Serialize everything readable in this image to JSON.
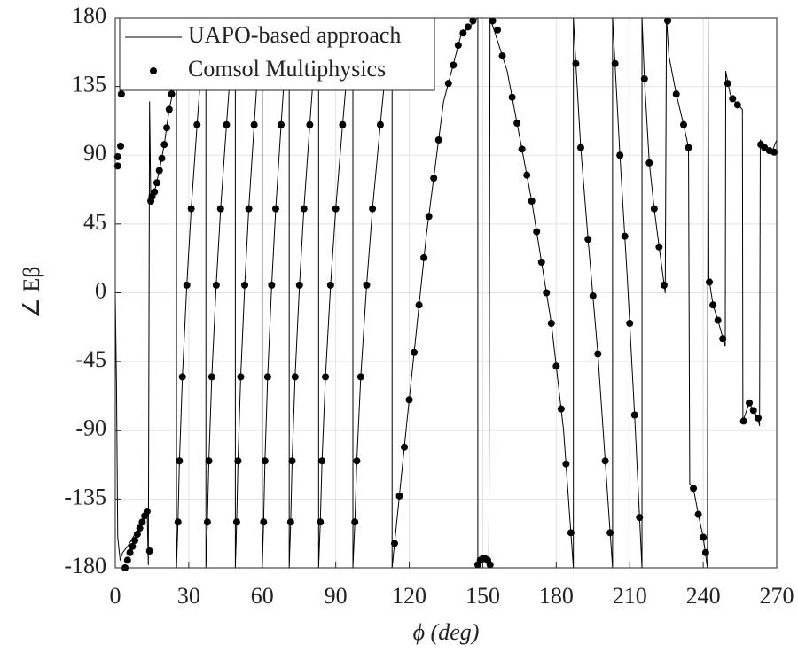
{
  "chart_data": {
    "type": "line",
    "xlabel": "ϕ (deg)",
    "ylabel": "∠ Eβ",
    "xlim": [
      0,
      270
    ],
    "ylim": [
      -180,
      180
    ],
    "xticks": [
      0,
      30,
      60,
      90,
      120,
      150,
      180,
      210,
      240,
      270
    ],
    "yticks": [
      -180,
      -135,
      -90,
      -45,
      0,
      45,
      90,
      135,
      180
    ],
    "grid": true,
    "legend_loc": "upper left",
    "series": [
      {
        "name": "UAPO-based approach",
        "mode": "line",
        "color": "#000000",
        "x": [
          0,
          0.5,
          1,
          2,
          3,
          5,
          8,
          11,
          13,
          13.5,
          14,
          14.5,
          16,
          18,
          20,
          22,
          24,
          25,
          25,
          25.6,
          26.2,
          27.4,
          29.2,
          31,
          33.4,
          35.2,
          37,
          37,
          37.6,
          38.2,
          39.4,
          41.2,
          43,
          45.4,
          47.2,
          49,
          49,
          49.55,
          50.1,
          51.2,
          52.85,
          54.5,
          56.7,
          58.35,
          60,
          60,
          60.55,
          61.1,
          62.2,
          63.85,
          65.5,
          67.7,
          69.35,
          71,
          71,
          71.6,
          72.2,
          73.4,
          75.2,
          77,
          79.4,
          81.2,
          83,
          83,
          83.7,
          84.4,
          85.8,
          87.9,
          90,
          92.8,
          94.9,
          97,
          97,
          97.8,
          98.6,
          100.2,
          102.6,
          105,
          108.2,
          110.6,
          113,
          113,
          119,
          127,
          134,
          141,
          148,
          148,
          149,
          151,
          152.5,
          153,
          160,
          170,
          178,
          183,
          187,
          187,
          188,
          190,
          193,
          197,
          200,
          203,
          203,
          204,
          206,
          209,
          212,
          215,
          215,
          216,
          218,
          220,
          222,
          224.5,
          225,
          226,
          229,
          232,
          234,
          234.5,
          236,
          238,
          240,
          241.7,
          242,
          242.3,
          244,
          246,
          249,
          249.2,
          251,
          253,
          256,
          256.2,
          258.8,
          260.5,
          262.4,
          263,
          263.3,
          265,
          268,
          270
        ],
        "values": [
          0,
          -60,
          -160,
          -175,
          -170,
          -166,
          -158,
          -150,
          -142,
          -178,
          125,
          60,
          66,
          80,
          97,
          120,
          135,
          180,
          -180,
          -150,
          -110,
          -55,
          5,
          55,
          110,
          150,
          180,
          -180,
          -150,
          -110,
          -55,
          5,
          55,
          110,
          150,
          180,
          -180,
          -150,
          -110,
          -55,
          5,
          55,
          110,
          150,
          180,
          -180,
          -150,
          -110,
          -55,
          5,
          55,
          110,
          150,
          180,
          -180,
          -150,
          -110,
          -55,
          5,
          55,
          110,
          150,
          180,
          -180,
          -150,
          -110,
          -55,
          5,
          55,
          110,
          150,
          180,
          -180,
          -150,
          -110,
          -55,
          5,
          55,
          110,
          150,
          180,
          -180,
          -85,
          38,
          125,
          168,
          180,
          -180,
          -175,
          -175,
          -180,
          180,
          145,
          60,
          -20,
          -90,
          -180,
          180,
          150,
          95,
          35,
          -40,
          -110,
          -180,
          180,
          150,
          90,
          10,
          -80,
          -180,
          180,
          140,
          85,
          55,
          30,
          0,
          180,
          155,
          130,
          110,
          95,
          -125,
          -128,
          -145,
          -160,
          -180,
          180,
          10,
          -8,
          -18,
          -35,
          145,
          130,
          125,
          120,
          -84,
          -72,
          -77,
          -82,
          -87,
          100,
          95,
          92,
          100
        ]
      },
      {
        "name": "Comsol Multiphysics",
        "mode": "scatter",
        "color": "#000000",
        "x": [
          1,
          1,
          2.2,
          2.5,
          4,
          5,
          6,
          7,
          8,
          9,
          10,
          11,
          12,
          13,
          14,
          14.5,
          15,
          16,
          17,
          18,
          19,
          20,
          21,
          22,
          23,
          25.6,
          26.2,
          27.4,
          29.2,
          31,
          33.4,
          37.6,
          38.2,
          39.4,
          41.2,
          43,
          45.4,
          49.55,
          50.1,
          51.2,
          52.85,
          54.5,
          56.7,
          60.55,
          61.1,
          62.2,
          63.85,
          65.5,
          67.7,
          71.6,
          72.2,
          73.4,
          75.2,
          77,
          79.4,
          83.7,
          84.4,
          85.8,
          87.9,
          90,
          92.8,
          97.8,
          98.6,
          100.2,
          102.6,
          105,
          108.2,
          114,
          116,
          118,
          120,
          122,
          124,
          126,
          128,
          130,
          132,
          136,
          138,
          140,
          142,
          144,
          146,
          148,
          149,
          150,
          151,
          152,
          153,
          154,
          156,
          158,
          162,
          164,
          166,
          168,
          170,
          172,
          174,
          176,
          178,
          180,
          182,
          184,
          186,
          188,
          190,
          193,
          195,
          197,
          200,
          202,
          204,
          206,
          208,
          210,
          212,
          214,
          216,
          218,
          220,
          222,
          224,
          225.5,
          229,
          232,
          234,
          236,
          238,
          240,
          241,
          242.5,
          244,
          246,
          248,
          250,
          252,
          254,
          256.5,
          258.8,
          260.5,
          262.4,
          263.5,
          265,
          267,
          269
        ],
        "values": [
          89,
          83,
          96,
          130,
          -180,
          -175,
          -170,
          -166,
          -162,
          -158,
          -154,
          -150,
          -146,
          -143,
          -169,
          60,
          63,
          66,
          72,
          80,
          88,
          97,
          108,
          120,
          130,
          -150,
          -110,
          -55,
          5,
          55,
          110,
          -150,
          -110,
          -55,
          5,
          55,
          110,
          -150,
          -110,
          -55,
          5,
          55,
          110,
          -150,
          -110,
          -55,
          5,
          55,
          110,
          -150,
          -110,
          -55,
          5,
          55,
          110,
          -150,
          -110,
          -55,
          5,
          55,
          110,
          -150,
          -110,
          -55,
          5,
          55,
          110,
          -164,
          -133,
          -101,
          -70,
          -39,
          -8,
          23,
          50,
          75,
          100,
          137,
          149,
          162,
          170,
          174,
          178,
          -178,
          -175,
          -174,
          -174,
          -175,
          -178,
          178,
          172,
          155,
          128,
          111,
          94,
          77,
          60,
          40,
          20,
          0,
          -20,
          -48,
          -76,
          -112,
          -157,
          150,
          95,
          35,
          -2,
          -40,
          -110,
          -157,
          150,
          90,
          37,
          -20,
          -80,
          -147,
          140,
          85,
          55,
          30,
          5,
          178,
          130,
          110,
          95,
          -128,
          -145,
          -160,
          -170,
          7,
          -8,
          -18,
          -30,
          137,
          127,
          123,
          -84,
          -72,
          -77,
          -82,
          97,
          95,
          93,
          92
        ]
      }
    ]
  }
}
